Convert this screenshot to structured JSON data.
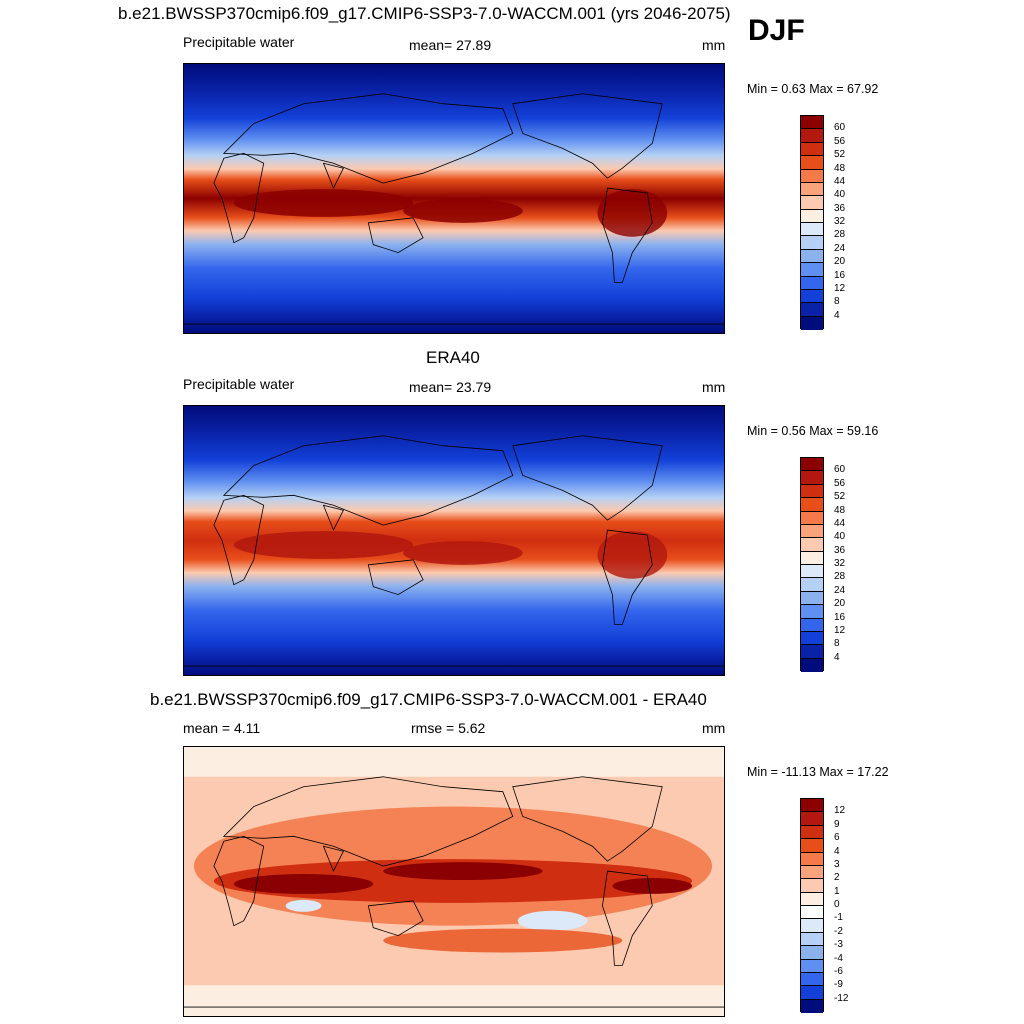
{
  "season": "DJF",
  "panels": [
    {
      "title": "b.e21.BWSSP370cmip6.f09_g17.CMIP6-SSP3-7.0-WACCM.001 (yrs 2046-2075)",
      "left_label": "Precipitable water",
      "center_label": "mean=  27.89",
      "units": "mm",
      "minmax": "Min =   0.63 Max =  67.92",
      "colorbar_labels": [
        "60",
        "56",
        "52",
        "48",
        "44",
        "40",
        "36",
        "32",
        "28",
        "24",
        "20",
        "16",
        "12",
        "8",
        "4"
      ]
    },
    {
      "title": "ERA40",
      "left_label": "Precipitable water",
      "center_label": "mean=  23.79",
      "units": "mm",
      "minmax": "Min =   0.56 Max =  59.16",
      "colorbar_labels": [
        "60",
        "56",
        "52",
        "48",
        "44",
        "40",
        "36",
        "32",
        "28",
        "24",
        "20",
        "16",
        "12",
        "8",
        "4"
      ]
    },
    {
      "title": "b.e21.BWSSP370cmip6.f09_g17.CMIP6-SSP3-7.0-WACCM.001 - ERA40",
      "left_label": "mean =   4.11",
      "center_label": "rmse =   5.62",
      "units": "mm",
      "minmax": "Min = -11.13 Max =  17.22",
      "colorbar_labels": [
        "12",
        "9",
        "6",
        "4",
        "3",
        "2",
        "1",
        "0",
        "-1",
        "-2",
        "-3",
        "-4",
        "-6",
        "-9",
        "-12"
      ]
    }
  ],
  "colors": {
    "abs_scale": [
      "#8b0000",
      "#b2180e",
      "#d02e10",
      "#e74e1a",
      "#f47a4a",
      "#f9a37c",
      "#fccab0",
      "#fdeee2",
      "#dbe9f9",
      "#b4d0f4",
      "#8cb2ee",
      "#5f8ff0",
      "#3466ed",
      "#1240d8",
      "#0a22a8",
      "#000c7b"
    ],
    "diff_scale": [
      "#8b0000",
      "#b2180e",
      "#d02e10",
      "#e74e1a",
      "#f47a4a",
      "#f9a37c",
      "#fccab0",
      "#fdeee2",
      "#ffffff",
      "#dbe9f9",
      "#b4d0f4",
      "#8cb2ee",
      "#5f8ff0",
      "#3466ed",
      "#1240d8",
      "#000c7b"
    ]
  }
}
